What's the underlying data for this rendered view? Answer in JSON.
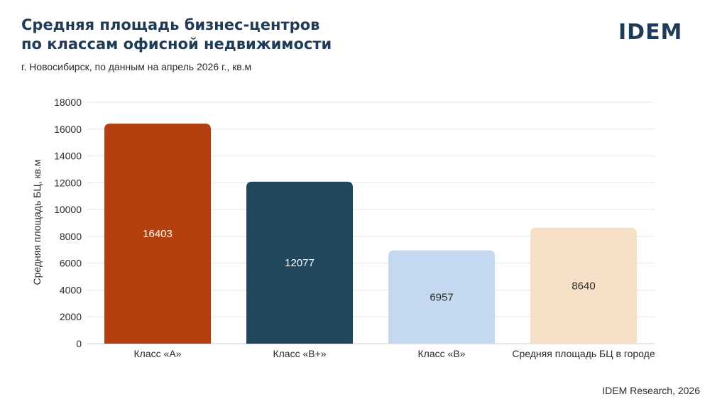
{
  "header": {
    "title_line1": "Средняя площадь бизнес-центров",
    "title_line2": "по классам офисной недвижимости",
    "subtitle": "г. Новосибирск, по данным на апрель 2026 г., кв.м",
    "logo": "IDEM"
  },
  "footer": {
    "source": "IDEM Research, 2026"
  },
  "chart_data": {
    "type": "bar",
    "categories": [
      "Класс «А»",
      "Класс «В+»",
      "Класс «В»",
      "Средняя площадь БЦ в городе"
    ],
    "values": [
      16403,
      12077,
      6957,
      8640
    ],
    "data_labels": [
      "16403",
      "12077",
      "6957",
      "8640"
    ],
    "bar_colors": [
      "#b3400e",
      "#21475f",
      "#c4d9f0",
      "#f6e0c7"
    ],
    "label_colors": [
      "#ffffff",
      "#ffffff",
      "#2b2b2b",
      "#2b2b2b"
    ],
    "ylabel": "Средняя площадь БЦ, кв.м",
    "ylim": [
      0,
      18000
    ],
    "yticks": [
      0,
      2000,
      4000,
      6000,
      8000,
      10000,
      12000,
      14000,
      16000,
      18000
    ],
    "grid": true,
    "legend": "none"
  }
}
